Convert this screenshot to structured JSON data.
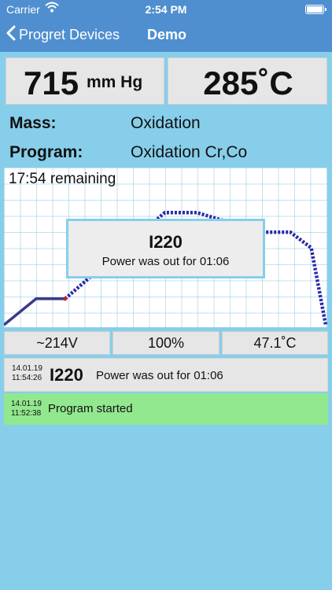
{
  "status_bar": {
    "carrier": "Carrier",
    "time": "2:54 PM"
  },
  "nav": {
    "back_label": "Progret Devices",
    "title": "Demo"
  },
  "readouts": {
    "pressure_value": "715",
    "pressure_unit": "mm Hg",
    "temperature": "285˚C"
  },
  "info": {
    "mass_label": "Mass:",
    "mass_value": "Oxidation",
    "program_label": "Program:",
    "program_value": "Oxidation Cr,Co"
  },
  "chart": {
    "remaining": "17:54 remaining",
    "completed_color": "#3a3a8a",
    "planned_color": "#2a2aa8",
    "marker_color": "#cc2222"
  },
  "chart_data": {
    "type": "line",
    "series": [
      {
        "values": [
          [
            0,
            0
          ],
          [
            0.2,
            0.2
          ],
          [
            0.38,
            0.2
          ]
        ]
      },
      {
        "values": [
          [
            0.38,
            0.2
          ],
          [
            1.0,
            0.86
          ],
          [
            1.2,
            0.86
          ],
          [
            1.6,
            0.71
          ],
          [
            1.78,
            0.71
          ],
          [
            1.91,
            0.59
          ],
          [
            2.0,
            0
          ]
        ]
      }
    ]
  },
  "alert": {
    "code": "I220",
    "message": "Power was out for 01:06"
  },
  "metrics": {
    "voltage": "~214V",
    "power": "100%",
    "ambient": "47.1˚C"
  },
  "log": [
    {
      "date": "14.01.19",
      "time": "11:54:26",
      "code": "I220",
      "message": "Power was out for 01:06",
      "color": "#e6e6e6"
    },
    {
      "date": "14.01.19",
      "time": "11:52:38",
      "message": "Program started",
      "color": "#92e88e"
    }
  ]
}
